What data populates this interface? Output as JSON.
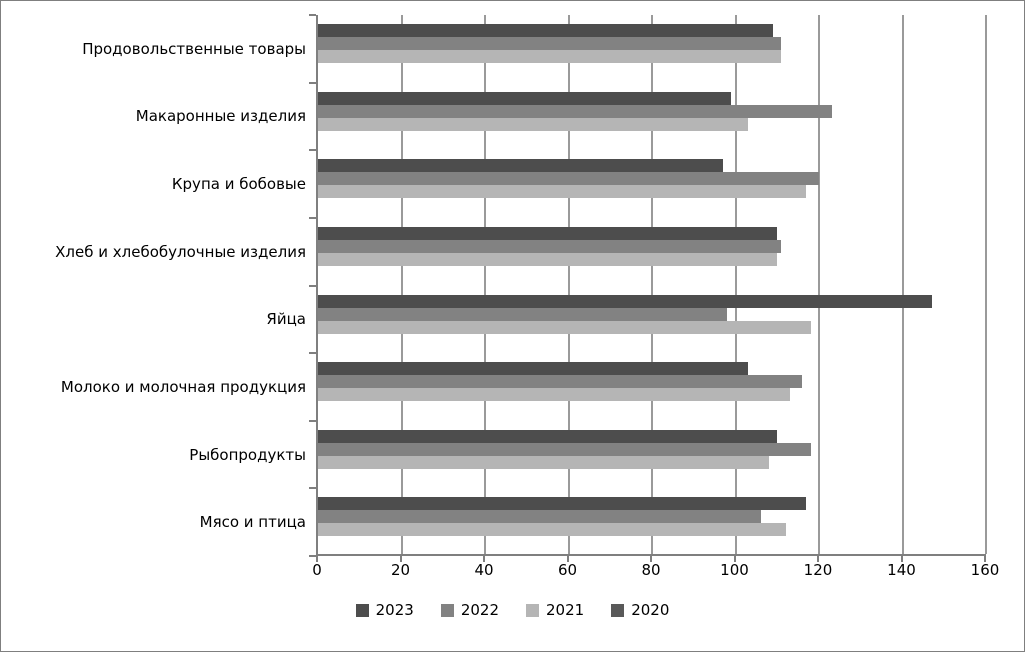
{
  "chart_data": {
    "type": "bar",
    "orientation": "horizontal",
    "title": "",
    "xlabel": "",
    "ylabel": "",
    "xlim": [
      0,
      160
    ],
    "x_ticks": [
      0,
      20,
      40,
      60,
      80,
      100,
      120,
      140,
      160
    ],
    "grid": true,
    "legend_position": "bottom",
    "categories": [
      "Продовольственные товары",
      "Макаронные изделия",
      "Крупа и бобовые",
      "Хлеб и хлебобулочные изделия",
      "Яйца",
      "Молоко и молочная продукция",
      "Рыбопродукты",
      "Мясо и птица"
    ],
    "series": [
      {
        "name": "2023",
        "color": "#4d4d4d",
        "values": [
          109,
          99,
          97,
          110,
          147,
          103,
          110,
          117
        ]
      },
      {
        "name": "2022",
        "color": "#828282",
        "values": [
          111,
          123,
          120,
          111,
          98,
          116,
          118,
          106
        ]
      },
      {
        "name": "2021",
        "color": "#b5b5b5",
        "values": [
          111,
          103,
          117,
          110,
          118,
          113,
          108,
          112
        ]
      },
      {
        "name": "2020",
        "color": "#595959",
        "values": [
          null,
          null,
          null,
          null,
          null,
          null,
          null,
          null
        ]
      }
    ],
    "colors": {
      "gridline": "#9a9a9a",
      "axis": "#7f7f7f",
      "frame_border": "#7f7f7f"
    }
  }
}
